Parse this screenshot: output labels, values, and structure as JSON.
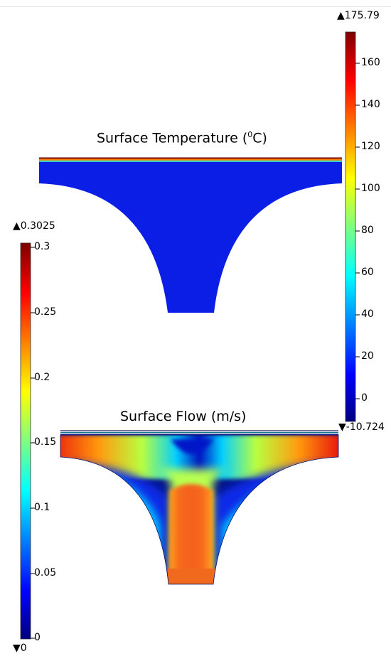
{
  "temperature_plot": {
    "title_prefix": "Surface Temperature (",
    "title_sup": "0",
    "title_suffix": "C)",
    "colorbar": {
      "max_label": "▲175.79",
      "min_label": "▼-10.724",
      "ticks": [
        "160",
        "140",
        "120",
        "100",
        "80",
        "60",
        "40",
        "20",
        "0"
      ]
    }
  },
  "flow_plot": {
    "title": "Surface Flow (m/s)",
    "colorbar": {
      "max_label": "▲0.3025",
      "min_label": "▼0",
      "ticks": [
        "0.3",
        "0.25",
        "0.2",
        "0.15",
        "0.1",
        "0.05",
        "0"
      ]
    }
  },
  "colors": {
    "colormap": [
      "#00007f",
      "#0000ff",
      "#00ffff",
      "#ffff00",
      "#ff0000",
      "#7f0000"
    ],
    "domain_blue": "#0a1ee6",
    "flow_core": "#f45a1e"
  }
}
